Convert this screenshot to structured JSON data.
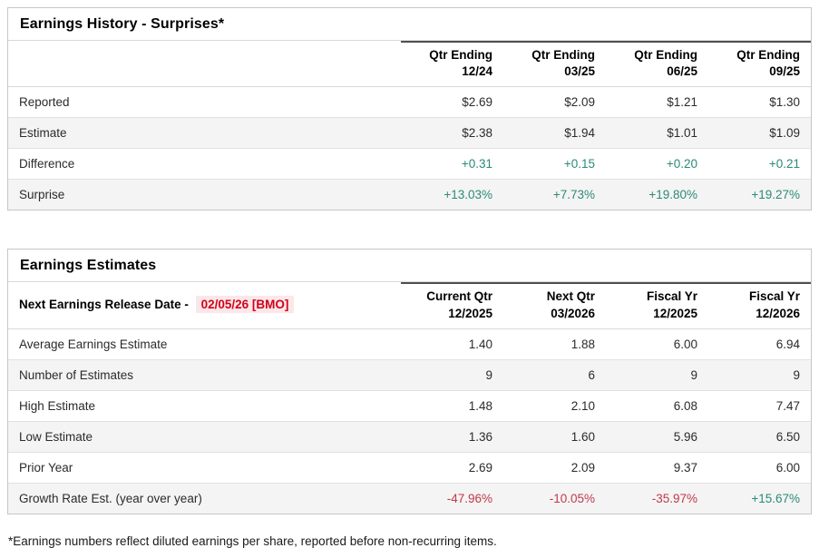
{
  "colors": {
    "positive": "#2b8a78",
    "negative": "#c0394b",
    "dateText": "#d0021b",
    "dateBg": "#fbe7e9",
    "stripe": "#f4f4f4",
    "border": "#c6c6c6"
  },
  "surprises_table": {
    "title": "Earnings History - Surprises*",
    "columns": [
      {
        "l1": "Qtr Ending",
        "l2": "12/24"
      },
      {
        "l1": "Qtr Ending",
        "l2": "03/25"
      },
      {
        "l1": "Qtr Ending",
        "l2": "06/25"
      },
      {
        "l1": "Qtr Ending",
        "l2": "09/25"
      }
    ],
    "rows": [
      {
        "label": "Reported",
        "values": [
          "$2.69",
          "$2.09",
          "$1.21",
          "$1.30"
        ]
      },
      {
        "label": "Estimate",
        "values": [
          "$2.38",
          "$1.94",
          "$1.01",
          "$1.09"
        ]
      },
      {
        "label": "Difference",
        "values": [
          "+0.31",
          "+0.15",
          "+0.20",
          "+0.21"
        ]
      },
      {
        "label": "Surprise",
        "values": [
          "+13.03%",
          "+7.73%",
          "+19.80%",
          "+19.27%"
        ]
      }
    ]
  },
  "estimates_table": {
    "title": "Earnings Estimates",
    "release_date_label": "Next Earnings Release Date - ",
    "release_date_value": "02/05/26 [BMO]",
    "columns": [
      {
        "l1": "Current Qtr",
        "l2": "12/2025"
      },
      {
        "l1": "Next Qtr",
        "l2": "03/2026"
      },
      {
        "l1": "Fiscal Yr",
        "l2": "12/2025"
      },
      {
        "l1": "Fiscal Yr",
        "l2": "12/2026"
      }
    ],
    "rows": [
      {
        "label": "Average Earnings Estimate",
        "values": [
          "1.40",
          "1.88",
          "6.00",
          "6.94"
        ]
      },
      {
        "label": "Number of Estimates",
        "values": [
          "9",
          "6",
          "9",
          "9"
        ]
      },
      {
        "label": "High Estimate",
        "values": [
          "1.48",
          "2.10",
          "6.08",
          "7.47"
        ]
      },
      {
        "label": "Low Estimate",
        "values": [
          "1.36",
          "1.60",
          "5.96",
          "6.50"
        ]
      },
      {
        "label": "Prior Year",
        "values": [
          "2.69",
          "2.09",
          "9.37",
          "6.00"
        ]
      },
      {
        "label": "Growth Rate Est. (year over year)",
        "values": [
          "-47.96%",
          "-10.05%",
          "-35.97%",
          "+15.67%"
        ]
      }
    ]
  },
  "footnote": "*Earnings numbers reflect diluted earnings per share, reported before non-recurring items."
}
